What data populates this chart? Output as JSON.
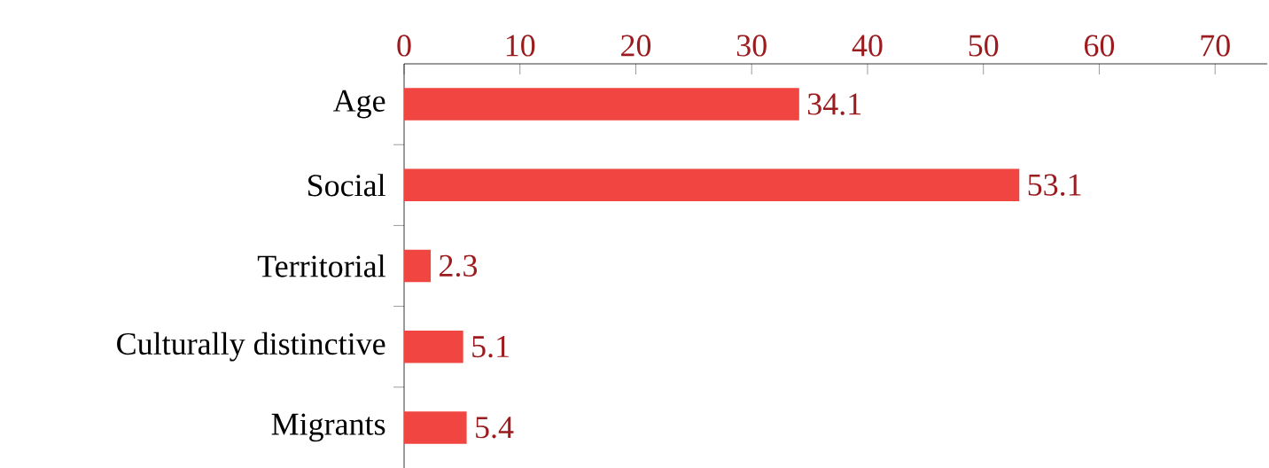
{
  "chart_data": {
    "type": "bar",
    "orientation": "horizontal",
    "categories": [
      "Age",
      "Social",
      "Territorial",
      "Culturally distinctive",
      "Migrants"
    ],
    "values": [
      34.1,
      53.1,
      2.3,
      5.1,
      5.4
    ],
    "color": "#f04540",
    "xlim": [
      0,
      74.5
    ],
    "xticks": [
      0,
      10,
      20,
      30,
      40,
      50,
      60,
      70
    ],
    "data_labels": true
  }
}
